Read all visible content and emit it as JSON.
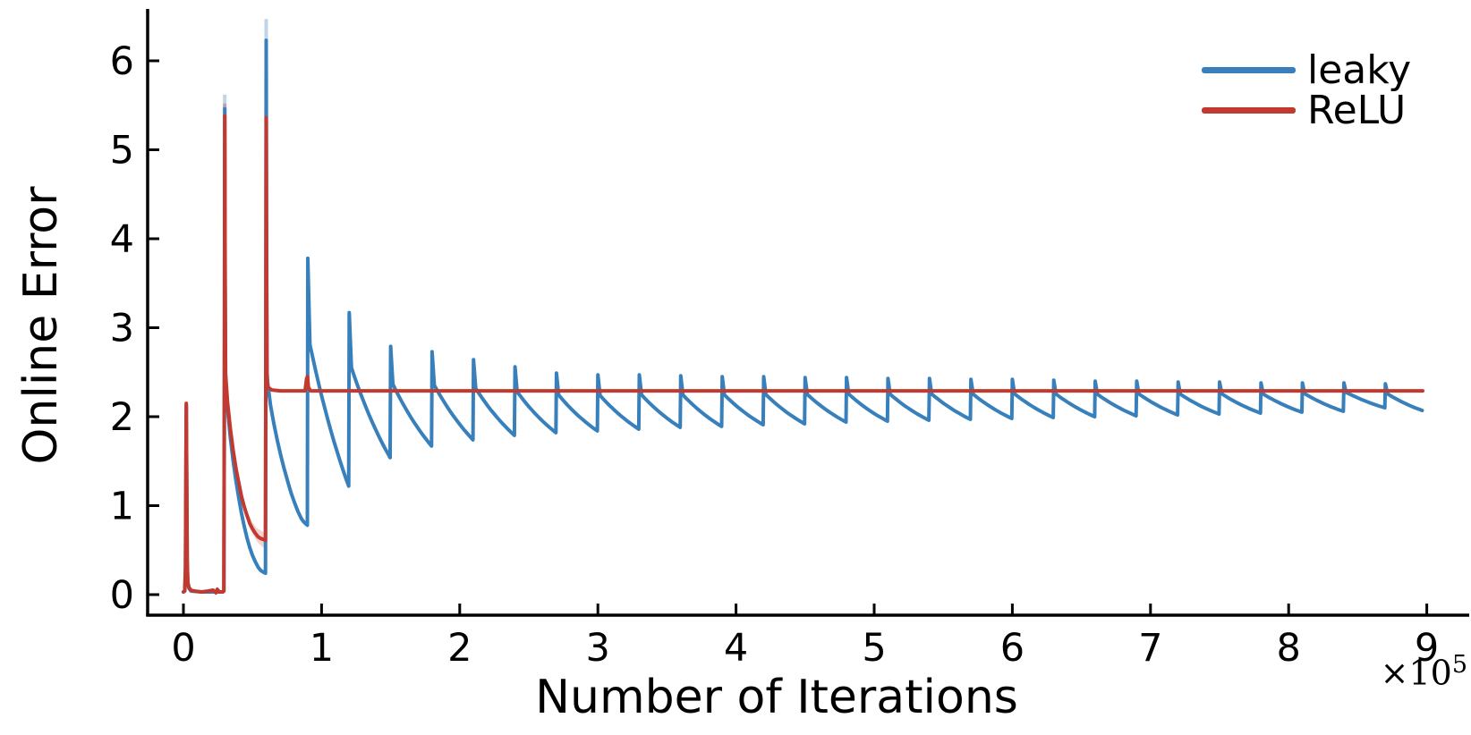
{
  "figure": {
    "background": "#ffffff"
  },
  "axes": {
    "ylabel": "Online Error",
    "xlabel": "Number of Iterations",
    "exponent_base": "×10",
    "exponent_power": "5"
  },
  "legend": {
    "items": [
      {
        "label": "leaky",
        "color": "#3780bb"
      },
      {
        "label": "ReLU",
        "color": "#c2392f"
      }
    ]
  },
  "chart_data": {
    "type": "line",
    "title": "",
    "xlabel": "Number of Iterations",
    "ylabel": "Online Error",
    "x_unit_multiplier": 100000,
    "x_ticks": [
      0,
      1,
      2,
      3,
      4,
      5,
      6,
      7,
      8,
      9
    ],
    "y_ticks": [
      0,
      1,
      2,
      3,
      4,
      5,
      6
    ],
    "xlim": [
      -0.26,
      9.31
    ],
    "ylim": [
      -0.23,
      6.58
    ],
    "grid": false,
    "legend_position": "top-right",
    "series": [
      {
        "name": "leaky",
        "color": "#3780bb",
        "early_points": [
          [
            0.0,
            0.03
          ],
          [
            0.01,
            0.04
          ],
          [
            0.015,
            0.28
          ],
          [
            0.018,
            1.35
          ],
          [
            0.021,
            2.13
          ],
          [
            0.024,
            1.25
          ],
          [
            0.027,
            0.38
          ],
          [
            0.032,
            0.13
          ],
          [
            0.04,
            0.07
          ],
          [
            0.055,
            0.04
          ],
          [
            0.13,
            0.03
          ],
          [
            0.26,
            0.03
          ],
          [
            0.285,
            0.03
          ],
          [
            0.293,
            0.04
          ],
          [
            0.2965,
            2.6
          ],
          [
            0.299,
            5.46
          ],
          [
            0.3015,
            3.5
          ],
          [
            0.305,
            2.44
          ],
          [
            0.32,
            2.08
          ],
          [
            0.34,
            1.76
          ],
          [
            0.36,
            1.5
          ],
          [
            0.38,
            1.28
          ],
          [
            0.4,
            1.09
          ],
          [
            0.42,
            0.92
          ],
          [
            0.44,
            0.77
          ],
          [
            0.46,
            0.64
          ],
          [
            0.48,
            0.53
          ],
          [
            0.5,
            0.44
          ],
          [
            0.52,
            0.37
          ],
          [
            0.54,
            0.31
          ],
          [
            0.56,
            0.27
          ],
          [
            0.58,
            0.25
          ],
          [
            0.594,
            0.24
          ],
          [
            0.5965,
            3.0
          ],
          [
            0.599,
            6.23
          ],
          [
            0.6015,
            4.2
          ],
          [
            0.605,
            2.5
          ],
          [
            0.61,
            2.38
          ],
          [
            0.63,
            2.13
          ],
          [
            0.655,
            1.92
          ],
          [
            0.68,
            1.73
          ],
          [
            0.705,
            1.56
          ],
          [
            0.73,
            1.41
          ],
          [
            0.755,
            1.27
          ],
          [
            0.78,
            1.14
          ],
          [
            0.805,
            1.03
          ],
          [
            0.83,
            0.93
          ],
          [
            0.855,
            0.85
          ],
          [
            0.875,
            0.81
          ],
          [
            0.897,
            0.78
          ]
        ],
        "sawtooth": {
          "period": 0.3,
          "cycles": [
            {
              "x": 0.9,
              "peak": 3.78,
              "trough": 1.22
            },
            {
              "x": 1.2,
              "peak": 3.17,
              "trough": 1.54
            },
            {
              "x": 1.5,
              "peak": 2.79,
              "trough": 1.67
            },
            {
              "x": 1.8,
              "peak": 2.73,
              "trough": 1.74
            },
            {
              "x": 2.1,
              "peak": 2.64,
              "trough": 1.79
            },
            {
              "x": 2.4,
              "peak": 2.56,
              "trough": 1.82
            },
            {
              "x": 2.7,
              "peak": 2.49,
              "trough": 1.84
            },
            {
              "x": 3.0,
              "peak": 2.47,
              "trough": 1.86
            },
            {
              "x": 3.3,
              "peak": 2.47,
              "trough": 1.88
            },
            {
              "x": 3.6,
              "peak": 2.46,
              "trough": 1.89
            },
            {
              "x": 3.9,
              "peak": 2.45,
              "trough": 1.91
            },
            {
              "x": 4.2,
              "peak": 2.45,
              "trough": 1.92
            },
            {
              "x": 4.5,
              "peak": 2.44,
              "trough": 1.94
            },
            {
              "x": 4.8,
              "peak": 2.44,
              "trough": 1.95
            },
            {
              "x": 5.1,
              "peak": 2.43,
              "trough": 1.96
            },
            {
              "x": 5.4,
              "peak": 2.43,
              "trough": 1.97
            },
            {
              "x": 5.7,
              "peak": 2.42,
              "trough": 1.98
            },
            {
              "x": 6.0,
              "peak": 2.42,
              "trough": 1.99
            },
            {
              "x": 6.3,
              "peak": 2.41,
              "trough": 2.0
            },
            {
              "x": 6.6,
              "peak": 2.4,
              "trough": 2.01
            },
            {
              "x": 6.9,
              "peak": 2.4,
              "trough": 2.02
            },
            {
              "x": 7.2,
              "peak": 2.39,
              "trough": 2.03
            },
            {
              "x": 7.5,
              "peak": 2.39,
              "trough": 2.04
            },
            {
              "x": 7.8,
              "peak": 2.38,
              "trough": 2.05
            },
            {
              "x": 8.1,
              "peak": 2.38,
              "trough": 2.06
            },
            {
              "x": 8.4,
              "peak": 2.38,
              "trough": 2.1
            },
            {
              "x": 8.7,
              "peak": 2.37,
              "trough": 2.07
            }
          ],
          "end_x": 8.97,
          "end_value": 2.07
        },
        "spike_band_tips": [
          {
            "x": 0.299,
            "from": 5.46,
            "to": 5.62
          },
          {
            "x": 0.599,
            "from": 6.23,
            "to": 6.47
          }
        ]
      },
      {
        "name": "ReLU",
        "color": "#c2392f",
        "points": [
          [
            0.0,
            0.03
          ],
          [
            0.01,
            0.04
          ],
          [
            0.015,
            0.3
          ],
          [
            0.018,
            1.4
          ],
          [
            0.021,
            2.15
          ],
          [
            0.024,
            1.3
          ],
          [
            0.027,
            0.4
          ],
          [
            0.032,
            0.14
          ],
          [
            0.04,
            0.08
          ],
          [
            0.055,
            0.05
          ],
          [
            0.08,
            0.04
          ],
          [
            0.13,
            0.03
          ],
          [
            0.18,
            0.04
          ],
          [
            0.215,
            0.05
          ],
          [
            0.235,
            0.02
          ],
          [
            0.245,
            0.06
          ],
          [
            0.26,
            0.03
          ],
          [
            0.285,
            0.03
          ],
          [
            0.293,
            0.04
          ],
          [
            0.2965,
            2.5
          ],
          [
            0.299,
            5.38
          ],
          [
            0.3015,
            3.6
          ],
          [
            0.305,
            2.48
          ],
          [
            0.32,
            2.15
          ],
          [
            0.34,
            1.86
          ],
          [
            0.36,
            1.62
          ],
          [
            0.38,
            1.42
          ],
          [
            0.4,
            1.26
          ],
          [
            0.42,
            1.11
          ],
          [
            0.44,
            0.99
          ],
          [
            0.46,
            0.89
          ],
          [
            0.48,
            0.8
          ],
          [
            0.5,
            0.74
          ],
          [
            0.52,
            0.69
          ],
          [
            0.54,
            0.65
          ],
          [
            0.56,
            0.63
          ],
          [
            0.58,
            0.62
          ],
          [
            0.594,
            0.61
          ],
          [
            0.5965,
            2.6
          ],
          [
            0.599,
            5.36
          ],
          [
            0.6015,
            3.7
          ],
          [
            0.605,
            2.42
          ],
          [
            0.612,
            2.33
          ],
          [
            0.64,
            2.3
          ],
          [
            0.7,
            2.29
          ],
          [
            0.88,
            2.29
          ],
          [
            0.892,
            2.43
          ],
          [
            0.898,
            2.45
          ],
          [
            0.905,
            2.33
          ],
          [
            0.92,
            2.29
          ],
          [
            1.5,
            2.29
          ],
          [
            3.0,
            2.29
          ],
          [
            5.0,
            2.29
          ],
          [
            7.0,
            2.29
          ],
          [
            8.97,
            2.29
          ]
        ],
        "band": [
          [
            0.34,
            1.8,
            1.92
          ],
          [
            0.38,
            1.37,
            1.48
          ],
          [
            0.42,
            1.06,
            1.17
          ],
          [
            0.46,
            0.84,
            0.95
          ],
          [
            0.5,
            0.68,
            0.81
          ],
          [
            0.53,
            0.6,
            0.75
          ],
          [
            0.56,
            0.55,
            0.72
          ],
          [
            0.58,
            0.53,
            0.7
          ],
          [
            0.594,
            0.52,
            0.69
          ]
        ],
        "spike_band_tips": [
          {
            "x": 0.299,
            "from": 5.38,
            "to": 5.52
          },
          {
            "x": 0.599,
            "from": 5.36,
            "to": 5.48
          }
        ]
      }
    ]
  }
}
